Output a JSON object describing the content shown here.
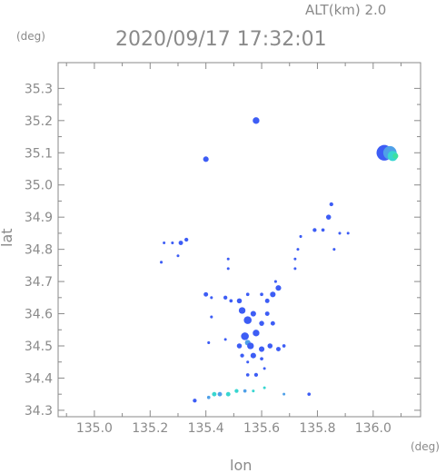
{
  "chart_data": {
    "type": "scatter",
    "alt_label": "ALT(km) 2.0",
    "title": "2020/09/17 17:32:01",
    "xlabel": "lon",
    "ylabel": "lat",
    "x_unit": "(deg)",
    "y_unit": "(deg)",
    "xlim": [
      134.87,
      136.17
    ],
    "ylim": [
      34.28,
      35.38
    ],
    "x_ticks": [
      135.0,
      135.2,
      135.4,
      135.6,
      135.8,
      136.0
    ],
    "x_tick_labels": [
      "135.0",
      "135.2",
      "135.4",
      "135.6",
      "135.8",
      "136.0"
    ],
    "y_ticks": [
      34.3,
      34.4,
      34.5,
      34.6,
      34.7,
      34.8,
      34.9,
      35.0,
      35.1,
      35.2,
      35.3
    ],
    "y_tick_labels": [
      "34.3",
      "34.4",
      "34.5",
      "34.6",
      "34.7",
      "34.8",
      "34.9",
      "35.0",
      "35.1",
      "35.2",
      "35.3"
    ],
    "grid": false,
    "colors": {
      "axis": "#8a8a8a",
      "blue": "#3d5df5",
      "mid": "#4fa0e8",
      "cyan": "#38d6d0",
      "green": "#3ee0a0"
    },
    "points": [
      {
        "x": 135.58,
        "y": 35.2,
        "r": 0.012,
        "c": "blue"
      },
      {
        "x": 135.4,
        "y": 35.08,
        "r": 0.01,
        "c": "blue"
      },
      {
        "x": 136.04,
        "y": 35.1,
        "r": 0.028,
        "c": "blue"
      },
      {
        "x": 136.06,
        "y": 35.1,
        "r": 0.024,
        "c": "mid"
      },
      {
        "x": 136.07,
        "y": 35.09,
        "r": 0.018,
        "c": "cyan"
      },
      {
        "x": 136.08,
        "y": 35.09,
        "r": 0.01,
        "c": "green"
      },
      {
        "x": 135.85,
        "y": 34.94,
        "r": 0.007,
        "c": "blue"
      },
      {
        "x": 135.84,
        "y": 34.9,
        "r": 0.009,
        "c": "blue"
      },
      {
        "x": 135.82,
        "y": 34.86,
        "r": 0.006,
        "c": "blue"
      },
      {
        "x": 135.79,
        "y": 34.86,
        "r": 0.007,
        "c": "blue"
      },
      {
        "x": 135.88,
        "y": 34.85,
        "r": 0.005,
        "c": "blue"
      },
      {
        "x": 135.91,
        "y": 34.85,
        "r": 0.004,
        "c": "blue"
      },
      {
        "x": 135.74,
        "y": 34.84,
        "r": 0.005,
        "c": "blue"
      },
      {
        "x": 135.73,
        "y": 34.8,
        "r": 0.004,
        "c": "blue"
      },
      {
        "x": 135.72,
        "y": 34.77,
        "r": 0.004,
        "c": "blue"
      },
      {
        "x": 135.72,
        "y": 34.74,
        "r": 0.004,
        "c": "blue"
      },
      {
        "x": 135.86,
        "y": 34.8,
        "r": 0.005,
        "c": "blue"
      },
      {
        "x": 135.33,
        "y": 34.83,
        "r": 0.007,
        "c": "blue"
      },
      {
        "x": 135.31,
        "y": 34.82,
        "r": 0.008,
        "c": "blue"
      },
      {
        "x": 135.28,
        "y": 34.82,
        "r": 0.005,
        "c": "blue"
      },
      {
        "x": 135.25,
        "y": 34.82,
        "r": 0.004,
        "c": "blue"
      },
      {
        "x": 135.24,
        "y": 34.76,
        "r": 0.005,
        "c": "blue"
      },
      {
        "x": 135.3,
        "y": 34.78,
        "r": 0.004,
        "c": "blue"
      },
      {
        "x": 135.48,
        "y": 34.77,
        "r": 0.004,
        "c": "blue"
      },
      {
        "x": 135.48,
        "y": 34.74,
        "r": 0.004,
        "c": "blue"
      },
      {
        "x": 135.65,
        "y": 34.7,
        "r": 0.005,
        "c": "blue"
      },
      {
        "x": 135.66,
        "y": 34.68,
        "r": 0.01,
        "c": "blue"
      },
      {
        "x": 135.64,
        "y": 34.66,
        "r": 0.01,
        "c": "blue"
      },
      {
        "x": 135.62,
        "y": 34.64,
        "r": 0.008,
        "c": "blue"
      },
      {
        "x": 135.6,
        "y": 34.66,
        "r": 0.006,
        "c": "blue"
      },
      {
        "x": 135.4,
        "y": 34.66,
        "r": 0.008,
        "c": "blue"
      },
      {
        "x": 135.42,
        "y": 34.65,
        "r": 0.005,
        "c": "blue"
      },
      {
        "x": 135.47,
        "y": 34.65,
        "r": 0.007,
        "c": "blue"
      },
      {
        "x": 135.49,
        "y": 34.64,
        "r": 0.006,
        "c": "blue"
      },
      {
        "x": 135.52,
        "y": 34.64,
        "r": 0.009,
        "c": "blue"
      },
      {
        "x": 135.55,
        "y": 34.66,
        "r": 0.006,
        "c": "blue"
      },
      {
        "x": 135.53,
        "y": 34.61,
        "r": 0.012,
        "c": "blue"
      },
      {
        "x": 135.55,
        "y": 34.58,
        "r": 0.014,
        "c": "blue"
      },
      {
        "x": 135.57,
        "y": 34.6,
        "r": 0.01,
        "c": "blue"
      },
      {
        "x": 135.62,
        "y": 34.6,
        "r": 0.008,
        "c": "blue"
      },
      {
        "x": 135.6,
        "y": 34.57,
        "r": 0.009,
        "c": "blue"
      },
      {
        "x": 135.64,
        "y": 34.57,
        "r": 0.008,
        "c": "blue"
      },
      {
        "x": 135.58,
        "y": 34.54,
        "r": 0.012,
        "c": "blue"
      },
      {
        "x": 135.54,
        "y": 34.53,
        "r": 0.014,
        "c": "blue"
      },
      {
        "x": 135.55,
        "y": 34.51,
        "r": 0.01,
        "c": "mid"
      },
      {
        "x": 135.56,
        "y": 34.5,
        "r": 0.012,
        "c": "blue"
      },
      {
        "x": 135.52,
        "y": 34.5,
        "r": 0.009,
        "c": "blue"
      },
      {
        "x": 135.6,
        "y": 34.49,
        "r": 0.01,
        "c": "blue"
      },
      {
        "x": 135.63,
        "y": 34.5,
        "r": 0.009,
        "c": "blue"
      },
      {
        "x": 135.66,
        "y": 34.49,
        "r": 0.008,
        "c": "blue"
      },
      {
        "x": 135.68,
        "y": 34.5,
        "r": 0.006,
        "c": "blue"
      },
      {
        "x": 135.57,
        "y": 34.47,
        "r": 0.01,
        "c": "blue"
      },
      {
        "x": 135.53,
        "y": 34.47,
        "r": 0.007,
        "c": "blue"
      },
      {
        "x": 135.6,
        "y": 34.46,
        "r": 0.006,
        "c": "blue"
      },
      {
        "x": 135.55,
        "y": 34.45,
        "r": 0.005,
        "c": "blue"
      },
      {
        "x": 135.42,
        "y": 34.59,
        "r": 0.005,
        "c": "blue"
      },
      {
        "x": 135.41,
        "y": 34.51,
        "r": 0.005,
        "c": "blue"
      },
      {
        "x": 135.47,
        "y": 34.52,
        "r": 0.004,
        "c": "blue"
      },
      {
        "x": 135.58,
        "y": 34.41,
        "r": 0.007,
        "c": "blue"
      },
      {
        "x": 135.55,
        "y": 34.41,
        "r": 0.006,
        "c": "blue"
      },
      {
        "x": 135.61,
        "y": 34.43,
        "r": 0.004,
        "c": "blue"
      },
      {
        "x": 135.36,
        "y": 34.33,
        "r": 0.007,
        "c": "blue"
      },
      {
        "x": 135.41,
        "y": 34.34,
        "r": 0.006,
        "c": "mid"
      },
      {
        "x": 135.43,
        "y": 34.35,
        "r": 0.008,
        "c": "cyan"
      },
      {
        "x": 135.45,
        "y": 34.35,
        "r": 0.008,
        "c": "mid"
      },
      {
        "x": 135.48,
        "y": 34.35,
        "r": 0.008,
        "c": "cyan"
      },
      {
        "x": 135.51,
        "y": 34.36,
        "r": 0.007,
        "c": "cyan"
      },
      {
        "x": 135.54,
        "y": 34.36,
        "r": 0.006,
        "c": "mid"
      },
      {
        "x": 135.57,
        "y": 34.36,
        "r": 0.005,
        "c": "cyan"
      },
      {
        "x": 135.61,
        "y": 34.37,
        "r": 0.004,
        "c": "cyan"
      },
      {
        "x": 135.68,
        "y": 34.35,
        "r": 0.004,
        "c": "mid"
      },
      {
        "x": 135.77,
        "y": 34.35,
        "r": 0.006,
        "c": "blue"
      }
    ]
  }
}
